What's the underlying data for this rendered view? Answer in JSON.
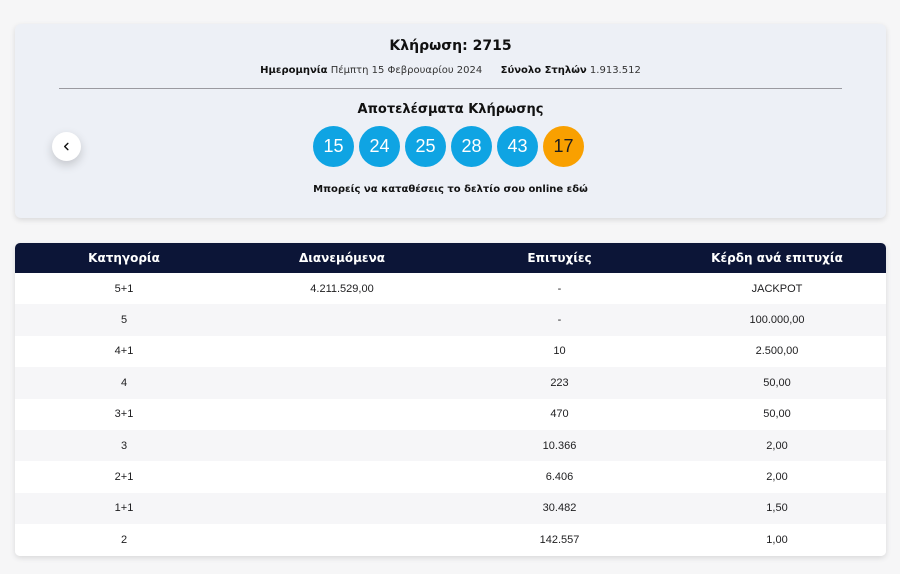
{
  "draw": {
    "title": "Κλήρωση: 2715",
    "date_label": "Ημερομηνία",
    "date_value": "Πέμπτη 15 Φεβρουαρίου 2024",
    "columns_label": "Σύνολο Στηλών",
    "columns_value": "1.913.512",
    "results_title": "Αποτελέσματα Κλήρωσης",
    "numbers": [
      "15",
      "24",
      "25",
      "28",
      "43"
    ],
    "joker": "17",
    "note_text": "Μπορείς να καταθέσεις το δελτίο σου online ",
    "note_link": "εδώ",
    "colors": {
      "ball": "#0fa4e3",
      "joker": "#f9a000",
      "header": "#0c1537"
    },
    "prev_icon": "chevron-left-icon"
  },
  "table": {
    "headers": [
      "Κατηγορία",
      "Διανεμόμενα",
      "Επιτυχίες",
      "Κέρδη ανά επιτυχία"
    ],
    "rows": [
      [
        "5+1",
        "4.211.529,00",
        "-",
        "JACKPOT"
      ],
      [
        "5",
        "",
        "-",
        "100.000,00"
      ],
      [
        "4+1",
        "",
        "10",
        "2.500,00"
      ],
      [
        "4",
        "",
        "223",
        "50,00"
      ],
      [
        "3+1",
        "",
        "470",
        "50,00"
      ],
      [
        "3",
        "",
        "10.366",
        "2,00"
      ],
      [
        "2+1",
        "",
        "6.406",
        "2,00"
      ],
      [
        "1+1",
        "",
        "30.482",
        "1,50"
      ],
      [
        "2",
        "",
        "142.557",
        "1,00"
      ]
    ]
  }
}
